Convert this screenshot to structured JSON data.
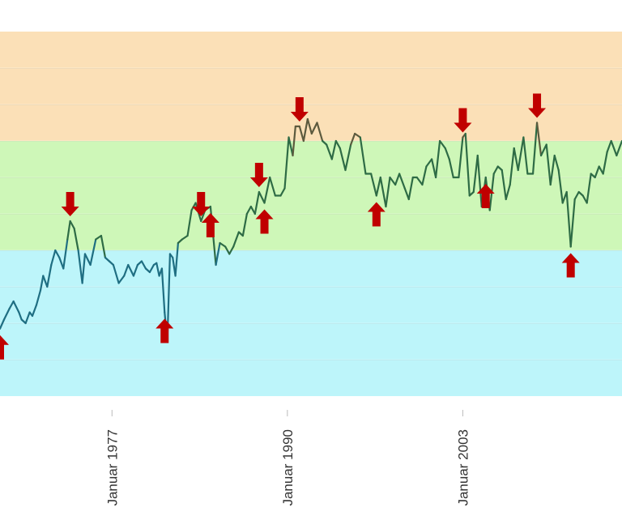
{
  "chart_data": {
    "type": "line",
    "title": "",
    "xlabel": "",
    "ylabel": "",
    "x_ticks": [
      {
        "label": "Januar 1977",
        "x": 1977
      },
      {
        "label": "Januar 1990",
        "x": 1990
      },
      {
        "label": "Januar 2003",
        "x": 2003
      }
    ],
    "xlim": [
      1968.7,
      2014.8
    ],
    "ylim": [
      0,
      100
    ],
    "grid": true,
    "bands": [
      {
        "from": 0,
        "to": 40,
        "color": "#bdf5fa"
      },
      {
        "from": 40,
        "to": 70,
        "color": "#cef7b8"
      },
      {
        "from": 70,
        "to": 100,
        "color": "#fbe0b7"
      }
    ],
    "series": [
      {
        "color_low": "#1f6e82",
        "color_mid": "#2e6b45",
        "color_high": "#5c5a3e",
        "x": [
          1968.7,
          1969.0,
          1969.4,
          1969.7,
          1970.1,
          1970.3,
          1970.6,
          1970.9,
          1971.1,
          1971.4,
          1971.7,
          1971.9,
          1972.2,
          1972.5,
          1972.8,
          1973.1,
          1973.4,
          1973.7,
          1973.9,
          1974.2,
          1974.5,
          1974.8,
          1975.0,
          1975.4,
          1975.8,
          1976.2,
          1976.5,
          1976.8,
          1977.1,
          1977.5,
          1977.9,
          1978.2,
          1978.6,
          1978.9,
          1979.2,
          1979.5,
          1979.8,
          1980.1,
          1980.3,
          1980.5,
          1980.7,
          1980.9,
          1981.1,
          1981.3,
          1981.5,
          1981.7,
          1981.9,
          1982.2,
          1982.6,
          1982.9,
          1983.2,
          1983.6,
          1983.9,
          1984.3,
          1984.7,
          1985.0,
          1985.4,
          1985.7,
          1986.0,
          1986.4,
          1986.7,
          1987.0,
          1987.3,
          1987.6,
          1987.9,
          1988.3,
          1988.7,
          1989.1,
          1989.5,
          1989.8,
          1990.1,
          1990.4,
          1990.6,
          1990.9,
          1991.2,
          1991.5,
          1991.8,
          1992.2,
          1992.6,
          1992.9,
          1993.3,
          1993.6,
          1993.9,
          1994.3,
          1994.7,
          1995.0,
          1995.4,
          1995.8,
          1996.2,
          1996.6,
          1996.9,
          1997.3,
          1997.6,
          1998.0,
          1998.3,
          1998.7,
          1999.0,
          1999.3,
          1999.6,
          2000.0,
          2000.3,
          2000.7,
          2001.0,
          2001.3,
          2001.7,
          2002.0,
          2002.3,
          2002.7,
          2003.0,
          2003.2,
          2003.5,
          2003.8,
          2004.1,
          2004.4,
          2004.7,
          2005.0,
          2005.3,
          2005.6,
          2005.9,
          2006.2,
          2006.5,
          2006.8,
          2007.1,
          2007.5,
          2007.8,
          2008.2,
          2008.5,
          2008.8,
          2009.2,
          2009.5,
          2009.8,
          2010.1,
          2010.4,
          2010.7,
          2011.0,
          2011.3,
          2011.6,
          2011.9,
          2012.2,
          2012.5,
          2012.8,
          2013.1,
          2013.4,
          2013.7,
          2014.0,
          2014.4,
          2014.8
        ],
        "y": [
          18.5,
          21,
          24,
          26,
          23,
          21,
          20,
          23,
          22,
          25,
          29,
          33,
          30,
          36,
          40,
          38,
          35,
          43,
          48,
          46,
          40,
          31,
          39,
          36,
          43,
          44,
          38,
          37,
          36,
          31,
          33,
          36,
          33,
          36,
          37,
          35,
          34,
          36,
          36.5,
          33,
          35,
          23,
          15,
          39,
          38,
          33,
          42,
          43,
          44,
          51,
          53,
          48,
          51,
          52,
          36,
          42,
          41,
          39,
          41,
          45,
          44,
          50,
          52,
          50,
          56,
          53,
          60,
          55,
          55,
          57,
          71,
          66,
          74,
          74,
          70,
          76,
          72,
          75,
          70,
          69,
          65,
          70,
          68,
          62,
          69,
          72,
          71,
          61,
          61,
          55,
          60,
          52,
          60,
          58,
          61,
          57,
          54,
          60,
          60,
          58,
          63,
          65,
          60,
          70,
          68,
          65,
          60,
          60,
          71,
          72,
          55,
          56,
          66,
          52,
          60,
          51,
          61,
          63,
          62,
          54,
          58,
          68,
          62,
          71,
          61,
          61,
          75,
          66,
          69,
          58,
          66,
          62,
          53,
          56,
          41,
          54,
          56,
          55,
          53,
          61,
          60,
          63,
          61,
          67,
          70,
          66,
          70
        ]
      }
    ],
    "markers": [
      {
        "type": "down",
        "x": 1973.9
      },
      {
        "type": "up",
        "x": 1980.9
      },
      {
        "type": "down",
        "x": 1983.6
      },
      {
        "type": "up",
        "x": 1984.3
      },
      {
        "type": "down",
        "x": 1987.9
      },
      {
        "type": "up",
        "x": 1988.3
      },
      {
        "type": "down",
        "x": 1990.9
      },
      {
        "type": "up",
        "x": 1996.6
      },
      {
        "type": "down",
        "x": 2003.0
      },
      {
        "type": "up",
        "x": 2004.7
      },
      {
        "type": "down",
        "x": 2008.5
      },
      {
        "type": "up",
        "x": 2011.0
      },
      {
        "type": "up",
        "x": 1968.7
      }
    ]
  }
}
